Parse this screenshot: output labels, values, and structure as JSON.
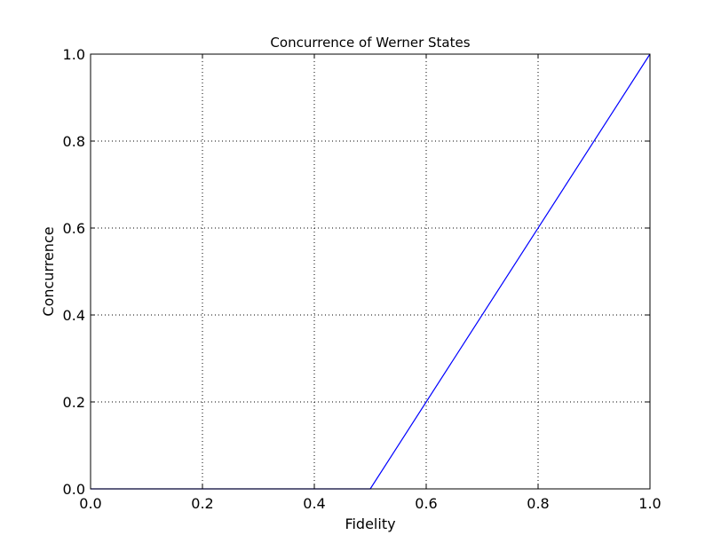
{
  "chart_data": {
    "type": "line",
    "title": "Concurrence of Werner States",
    "xlabel": "Fidelity",
    "ylabel": "Concurrence",
    "xlim": [
      0.0,
      1.0
    ],
    "ylim": [
      0.0,
      1.0
    ],
    "xticks": [
      "0.0",
      "0.2",
      "0.4",
      "0.6",
      "0.8",
      "1.0"
    ],
    "yticks": [
      "0.0",
      "0.2",
      "0.4",
      "0.6",
      "0.8",
      "1.0"
    ],
    "grid": true,
    "series": [
      {
        "color": "#0000ff",
        "x": [
          0.0,
          0.5,
          1.0
        ],
        "y": [
          0.0,
          0.0,
          1.0
        ]
      }
    ]
  }
}
